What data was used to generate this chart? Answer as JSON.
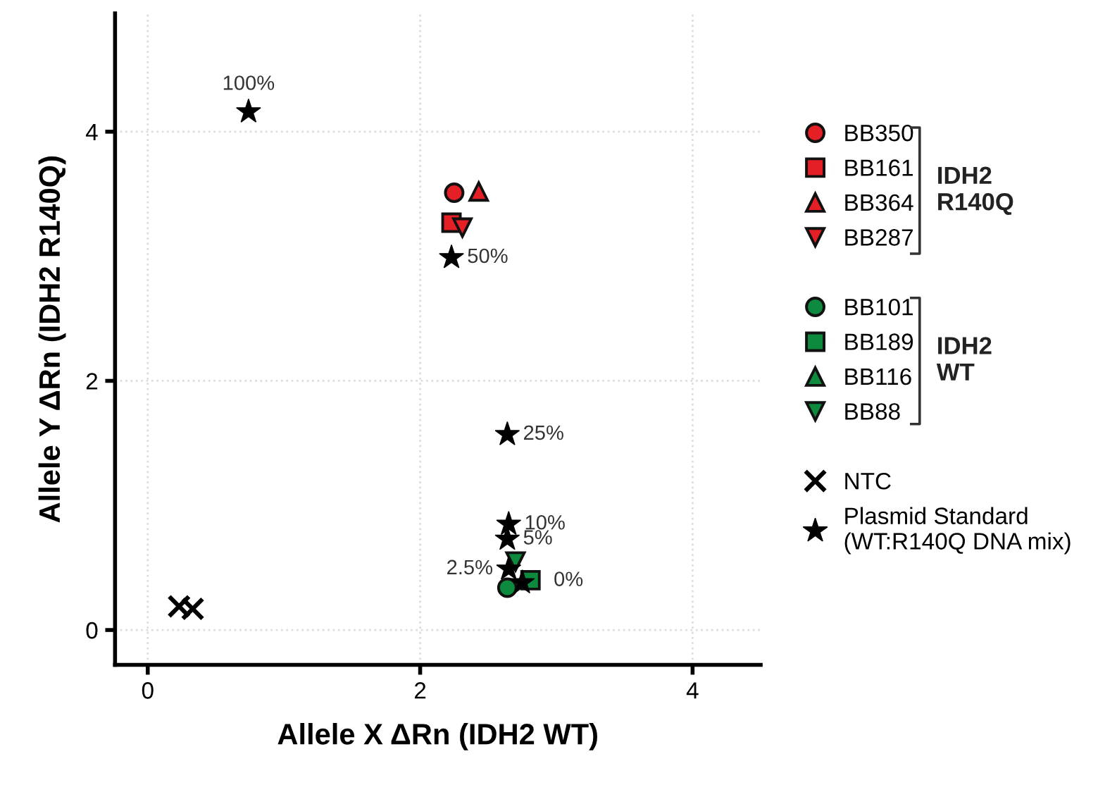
{
  "chart_data": {
    "type": "scatter",
    "xlabel": "Allele X ΔRn (IDH2 WT)",
    "ylabel": "Allele Y ΔRn (IDH2 R140Q)",
    "xlim": [
      -0.24,
      4.5
    ],
    "ylim": [
      -0.28,
      4.95
    ],
    "xticks": [
      0,
      2,
      4
    ],
    "yticks": [
      0,
      2,
      4
    ],
    "grid": true,
    "legend": "right",
    "annotations": [
      "IDH2\nR140Q",
      "IDH2\nWT",
      {
        "text": "100%",
        "x": 0.74,
        "y": 4.16
      },
      {
        "text": "50%",
        "x": 2.23,
        "y": 2.99
      },
      {
        "text": "25%",
        "x": 2.64,
        "y": 1.57
      },
      {
        "text": "10%",
        "x": 2.65,
        "y": 0.85
      },
      {
        "text": "5%",
        "x": 2.64,
        "y": 0.73
      },
      {
        "text": "2.5%",
        "x": 2.65,
        "y": 0.49
      },
      {
        "text": "0%",
        "x": 2.75,
        "y": 0.38
      }
    ],
    "series": [
      {
        "name": "BB350",
        "color": "#e41f26",
        "marker": "circle",
        "x": [
          2.25
        ],
        "values": [
          3.51
        ]
      },
      {
        "name": "BB161",
        "color": "#e41f26",
        "marker": "square",
        "x": [
          2.23
        ],
        "values": [
          3.27
        ]
      },
      {
        "name": "BB364",
        "color": "#e41f26",
        "marker": "triangle",
        "x": [
          2.43
        ],
        "values": [
          3.52
        ]
      },
      {
        "name": "BB287",
        "color": "#e41f26",
        "marker": "triangle_down",
        "x": [
          2.31
        ],
        "values": [
          3.23
        ]
      },
      {
        "name": "BB101",
        "color": "#0e8a3f",
        "marker": "circle",
        "x": [
          2.64
        ],
        "values": [
          0.34
        ]
      },
      {
        "name": "BB189",
        "color": "#0e8a3f",
        "marker": "square",
        "x": [
          2.81
        ],
        "values": [
          0.4
        ]
      },
      {
        "name": "BB116",
        "color": "#0e8a3f",
        "marker": "triangle",
        "x": [
          null
        ],
        "values": [
          null
        ]
      },
      {
        "name": "BB88",
        "color": "#0e8a3f",
        "marker": "triangle_down",
        "x": [
          2.7
        ],
        "values": [
          0.55
        ]
      },
      {
        "name": "NTC",
        "color": "#000000",
        "marker": "cross",
        "x": [
          0.23,
          0.33
        ],
        "values": [
          0.19,
          0.17
        ]
      },
      {
        "name": "Plasmid Standard\n(WT:R140Q DNA mix)",
        "color": "#000000",
        "marker": "star",
        "x": [
          0.74,
          2.23,
          2.64,
          2.65,
          2.64,
          2.65,
          2.75
        ],
        "values": [
          4.16,
          2.99,
          1.57,
          0.85,
          0.73,
          0.49,
          0.38
        ]
      }
    ]
  }
}
